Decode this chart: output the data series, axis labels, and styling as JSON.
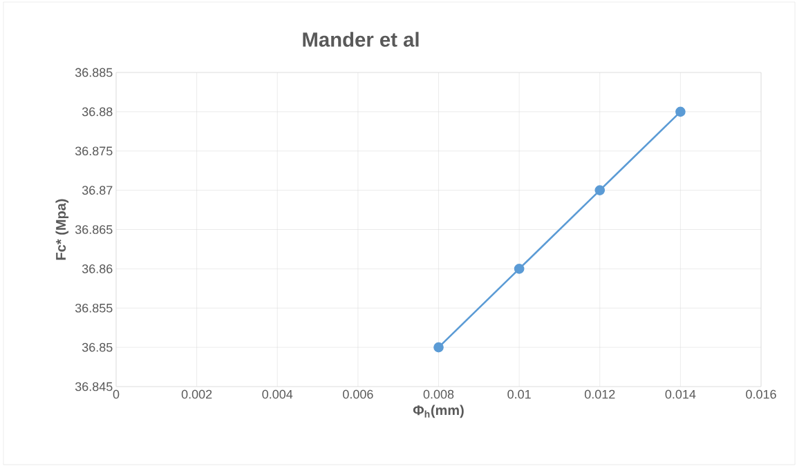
{
  "chart_data": {
    "type": "line",
    "title": "Mander et al",
    "xlabel": "Φ$_{h}$(mm)",
    "ylabel": "Fc* (Mpa)",
    "x": [
      0.008,
      0.01,
      0.012,
      0.014
    ],
    "series": [
      {
        "color": "#5b9bd5",
        "values": [
          36.85,
          36.86,
          36.87,
          36.88
        ]
      }
    ],
    "xlim": [
      0,
      0.016
    ],
    "xticks": [
      0,
      0.002,
      0.004,
      0.006,
      0.008,
      0.01,
      0.012,
      0.014,
      0.016
    ],
    "ylim": [
      36.845,
      36.885
    ],
    "yticks": [
      36.845,
      36.85,
      36.855,
      36.86,
      36.865,
      36.87,
      36.875,
      36.88,
      36.885
    ],
    "grid": true,
    "marker": "circle",
    "line_style": "solid"
  }
}
